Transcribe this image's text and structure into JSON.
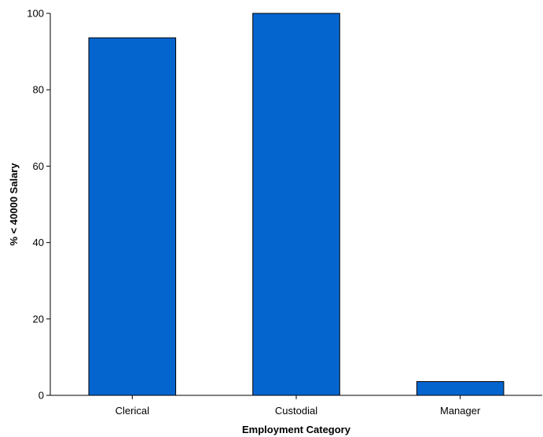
{
  "chart_data": {
    "type": "bar",
    "categories": [
      "Clerical",
      "Custodial",
      "Manager"
    ],
    "values": [
      93.6,
      100.0,
      3.6
    ],
    "xlabel": "Employment Category",
    "ylabel": "% < 40000 Salary",
    "ylim": [
      0,
      100
    ],
    "yticks": [
      "0",
      "20",
      "40",
      "60",
      "80",
      "100"
    ],
    "grid": false,
    "bar_color": "#0565cf",
    "bar_edge_color": "#000000"
  }
}
